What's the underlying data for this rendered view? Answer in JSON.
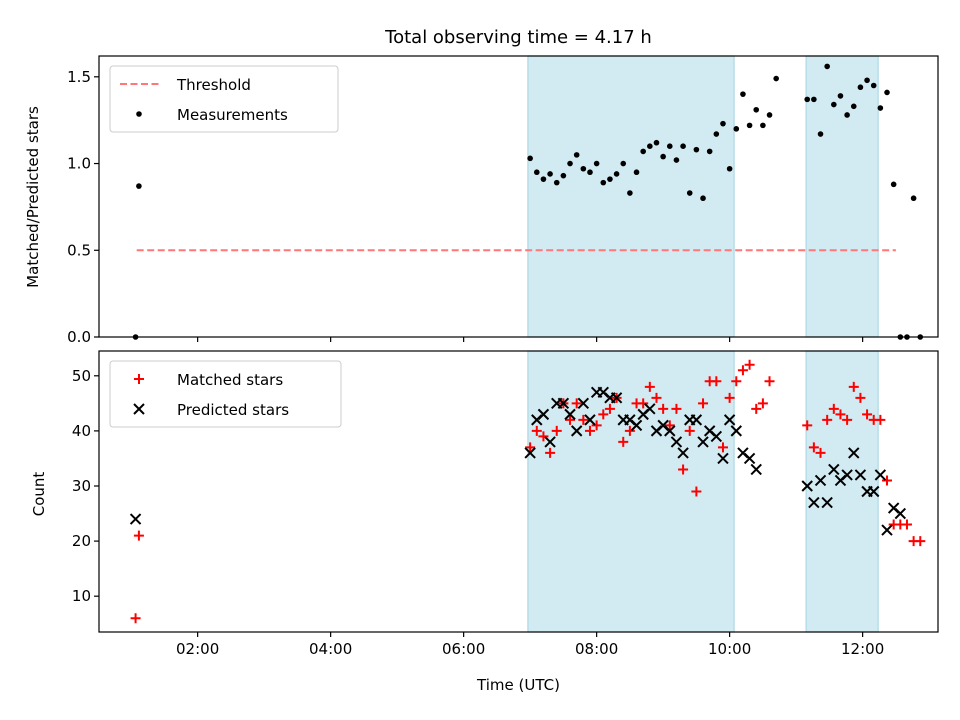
{
  "figure": {
    "title": "Total observing time = 4.17 h"
  },
  "chart_data": [
    {
      "type": "scatter",
      "panel": "top",
      "xlabel": "",
      "ylabel": "Matched/Predicted stars",
      "xlim": [
        "00:31",
        "13:08"
      ],
      "ylim": [
        0,
        1.62
      ],
      "yticks": [
        "0.0",
        "0.5",
        "1.0",
        "1.5"
      ],
      "xticks": [
        "02:00",
        "04:00",
        "06:00",
        "08:00",
        "10:00",
        "12:00"
      ],
      "shaded_intervals": [
        [
          "06:58",
          "10:04"
        ],
        [
          "11:09",
          "12:14"
        ]
      ],
      "shade_color": "#add8e6",
      "legend": {
        "location": "upper left",
        "items": [
          {
            "label": "Threshold",
            "style": "dashed-line",
            "color": "#ff7777"
          },
          {
            "label": "Measurements",
            "style": "dot",
            "color": "#000000"
          }
        ]
      },
      "series": [
        {
          "name": "Threshold",
          "style": "dashed-line",
          "color": "#ff7777",
          "points": [
            [
              "01:05",
              0.5
            ],
            [
              "12:30",
              0.5
            ]
          ]
        },
        {
          "name": "Measurements",
          "style": "dot",
          "color": "#000000",
          "points": [
            [
              "01:04",
              0.0
            ],
            [
              "01:07",
              0.87
            ],
            [
              "07:00",
              1.03
            ],
            [
              "07:06",
              0.95
            ],
            [
              "07:12",
              0.91
            ],
            [
              "07:18",
              0.94
            ],
            [
              "07:24",
              0.89
            ],
            [
              "07:30",
              0.93
            ],
            [
              "07:36",
              1.0
            ],
            [
              "07:42",
              1.05
            ],
            [
              "07:48",
              0.97
            ],
            [
              "07:54",
              0.95
            ],
            [
              "08:00",
              1.0
            ],
            [
              "08:06",
              0.89
            ],
            [
              "08:12",
              0.91
            ],
            [
              "08:18",
              0.94
            ],
            [
              "08:24",
              1.0
            ],
            [
              "08:30",
              0.83
            ],
            [
              "08:36",
              0.95
            ],
            [
              "08:42",
              1.07
            ],
            [
              "08:48",
              1.1
            ],
            [
              "08:54",
              1.12
            ],
            [
              "09:00",
              1.04
            ],
            [
              "09:06",
              1.1
            ],
            [
              "09:12",
              1.02
            ],
            [
              "09:18",
              1.1
            ],
            [
              "09:24",
              0.83
            ],
            [
              "09:30",
              1.08
            ],
            [
              "09:36",
              0.8
            ],
            [
              "09:42",
              1.07
            ],
            [
              "09:48",
              1.17
            ],
            [
              "09:54",
              1.23
            ],
            [
              "10:00",
              0.97
            ],
            [
              "10:06",
              1.2
            ],
            [
              "10:12",
              1.4
            ],
            [
              "10:18",
              1.22
            ],
            [
              "10:24",
              1.31
            ],
            [
              "10:30",
              1.22
            ],
            [
              "10:36",
              1.28
            ],
            [
              "10:42",
              1.49
            ],
            [
              "11:10",
              1.37
            ],
            [
              "11:16",
              1.37
            ],
            [
              "11:22",
              1.17
            ],
            [
              "11:28",
              1.56
            ],
            [
              "11:34",
              1.34
            ],
            [
              "11:40",
              1.39
            ],
            [
              "11:46",
              1.28
            ],
            [
              "11:52",
              1.33
            ],
            [
              "11:58",
              1.44
            ],
            [
              "12:04",
              1.48
            ],
            [
              "12:10",
              1.45
            ],
            [
              "12:16",
              1.32
            ],
            [
              "12:22",
              1.41
            ],
            [
              "12:28",
              0.88
            ],
            [
              "12:34",
              0.0
            ],
            [
              "12:40",
              0.0
            ],
            [
              "12:46",
              0.8
            ],
            [
              "12:52",
              0.0
            ]
          ]
        }
      ]
    },
    {
      "type": "scatter",
      "panel": "bottom",
      "xlabel": "Time (UTC)",
      "ylabel": "Count",
      "xlim": [
        "00:31",
        "13:08"
      ],
      "ylim": [
        3.5,
        54.5
      ],
      "yticks": [
        "10",
        "20",
        "30",
        "40",
        "50"
      ],
      "xticks": [
        "02:00",
        "04:00",
        "06:00",
        "08:00",
        "10:00",
        "12:00"
      ],
      "shaded_intervals": [
        [
          "06:58",
          "10:04"
        ],
        [
          "11:09",
          "12:14"
        ]
      ],
      "shade_color": "#add8e6",
      "legend": {
        "location": "upper left",
        "items": [
          {
            "label": "Matched stars",
            "style": "plus",
            "color": "#ff0000"
          },
          {
            "label": "Predicted stars",
            "style": "x",
            "color": "#000000"
          }
        ]
      },
      "series": [
        {
          "name": "Matched stars",
          "style": "plus",
          "color": "#ff0000",
          "points": [
            [
              "01:04",
              6
            ],
            [
              "01:07",
              21
            ],
            [
              "07:00",
              37
            ],
            [
              "07:06",
              40
            ],
            [
              "07:12",
              39
            ],
            [
              "07:18",
              36
            ],
            [
              "07:24",
              40
            ],
            [
              "07:30",
              45
            ],
            [
              "07:36",
              42
            ],
            [
              "07:42",
              45
            ],
            [
              "07:48",
              42
            ],
            [
              "07:54",
              40
            ],
            [
              "08:00",
              41
            ],
            [
              "08:06",
              43
            ],
            [
              "08:12",
              44
            ],
            [
              "08:18",
              46
            ],
            [
              "08:24",
              38
            ],
            [
              "08:30",
              40
            ],
            [
              "08:36",
              45
            ],
            [
              "08:42",
              45
            ],
            [
              "08:48",
              48
            ],
            [
              "08:54",
              46
            ],
            [
              "09:00",
              44
            ],
            [
              "09:06",
              41
            ],
            [
              "09:12",
              44
            ],
            [
              "09:18",
              33
            ],
            [
              "09:24",
              40
            ],
            [
              "09:30",
              29
            ],
            [
              "09:36",
              45
            ],
            [
              "09:42",
              49
            ],
            [
              "09:48",
              49
            ],
            [
              "09:54",
              37
            ],
            [
              "10:00",
              46
            ],
            [
              "10:06",
              49
            ],
            [
              "10:12",
              51
            ],
            [
              "10:18",
              52
            ],
            [
              "10:24",
              44
            ],
            [
              "10:30",
              45
            ],
            [
              "10:36",
              49
            ],
            [
              "11:10",
              41
            ],
            [
              "11:16",
              37
            ],
            [
              "11:22",
              36
            ],
            [
              "11:28",
              42
            ],
            [
              "11:34",
              44
            ],
            [
              "11:40",
              43
            ],
            [
              "11:46",
              42
            ],
            [
              "11:52",
              48
            ],
            [
              "11:58",
              46
            ],
            [
              "12:04",
              43
            ],
            [
              "12:10",
              42
            ],
            [
              "12:16",
              42
            ],
            [
              "12:22",
              31
            ],
            [
              "12:28",
              23
            ],
            [
              "12:34",
              23
            ],
            [
              "12:40",
              23
            ],
            [
              "12:46",
              20
            ],
            [
              "12:52",
              20
            ]
          ]
        },
        {
          "name": "Predicted stars",
          "style": "x",
          "color": "#000000",
          "points": [
            [
              "01:04",
              24
            ],
            [
              "07:00",
              36
            ],
            [
              "07:06",
              42
            ],
            [
              "07:12",
              43
            ],
            [
              "07:18",
              38
            ],
            [
              "07:24",
              45
            ],
            [
              "07:30",
              45
            ],
            [
              "07:36",
              43
            ],
            [
              "07:42",
              40
            ],
            [
              "07:48",
              45
            ],
            [
              "07:54",
              42
            ],
            [
              "08:00",
              47
            ],
            [
              "08:06",
              47
            ],
            [
              "08:12",
              46
            ],
            [
              "08:18",
              46
            ],
            [
              "08:24",
              42
            ],
            [
              "08:30",
              42
            ],
            [
              "08:36",
              41
            ],
            [
              "08:42",
              43
            ],
            [
              "08:48",
              44
            ],
            [
              "08:54",
              40
            ],
            [
              "09:00",
              41
            ],
            [
              "09:06",
              40
            ],
            [
              "09:12",
              38
            ],
            [
              "09:18",
              36
            ],
            [
              "09:24",
              42
            ],
            [
              "09:30",
              42
            ],
            [
              "09:36",
              38
            ],
            [
              "09:42",
              40
            ],
            [
              "09:48",
              39
            ],
            [
              "09:54",
              35
            ],
            [
              "10:00",
              42
            ],
            [
              "10:06",
              40
            ],
            [
              "10:12",
              36
            ],
            [
              "10:18",
              35
            ],
            [
              "10:24",
              33
            ],
            [
              "11:10",
              30
            ],
            [
              "11:16",
              27
            ],
            [
              "11:22",
              31
            ],
            [
              "11:28",
              27
            ],
            [
              "11:34",
              33
            ],
            [
              "11:40",
              31
            ],
            [
              "11:46",
              32
            ],
            [
              "11:52",
              36
            ],
            [
              "11:58",
              32
            ],
            [
              "12:04",
              29
            ],
            [
              "12:10",
              29
            ],
            [
              "12:16",
              32
            ],
            [
              "12:22",
              22
            ],
            [
              "12:28",
              26
            ],
            [
              "12:34",
              25
            ]
          ]
        }
      ]
    }
  ]
}
